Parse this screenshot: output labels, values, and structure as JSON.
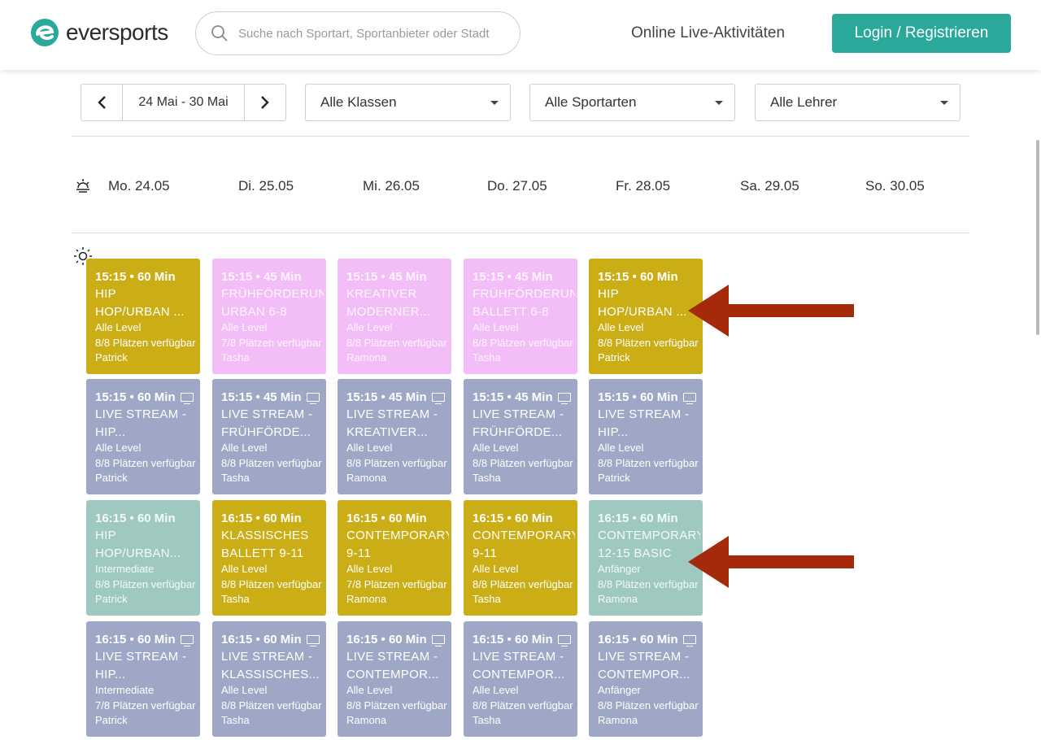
{
  "header": {
    "logo_text": "eversports",
    "search_placeholder": "Suche nach Sportart, Sportanbieter oder Stadt",
    "online_link": "Online Live-Aktivitäten",
    "login_button": "Login / Registrieren"
  },
  "filters": {
    "date_range": "24 Mai - 30 Mai",
    "classes": "Alle Klassen",
    "sports": "Alle Sportarten",
    "teachers": "Alle Lehrer"
  },
  "days": [
    "Mo. 24.05",
    "Di. 25.05",
    "Mi. 26.05",
    "Do. 27.05",
    "Fr. 28.05",
    "Sa. 29.05",
    "So. 30.05"
  ],
  "colors": {
    "brand": "#2aa99b",
    "yellow": "#cbad16",
    "pink": "#f3bdf7",
    "blue": "#9ea8c6",
    "teal": "#9ec8c0",
    "annotation_arrow": "#a52a0a"
  },
  "cards": [
    {
      "time": "15:15 • 60 Min",
      "title1": "HIP",
      "title2": "HOP/URBAN ...",
      "level": "Alle Level",
      "spots": "8/8 Plätzen verfügbar",
      "teacher": "Patrick",
      "color": "yellow",
      "live": false
    },
    {
      "time": "15:15 • 45 Min",
      "title1": "FRÜHFÖRDERUNG",
      "title2": "URBAN 6-8",
      "level": "Alle Level",
      "spots": "7/8 Plätzen verfügbar",
      "teacher": "Tasha",
      "color": "pink",
      "live": false
    },
    {
      "time": "15:15 • 45 Min",
      "title1": "KREATIVER",
      "title2": "MODERNER...",
      "level": "Alle Level",
      "spots": "8/8 Plätzen verfügbar",
      "teacher": "Ramona",
      "color": "pink",
      "live": false
    },
    {
      "time": "15:15 • 45 Min",
      "title1": "FRÜHFÖRDERUNG",
      "title2": "BALLETT 6-8",
      "level": "Alle Level",
      "spots": "8/8 Plätzen verfügbar",
      "teacher": "Tasha",
      "color": "pink",
      "live": false
    },
    {
      "time": "15:15 • 60 Min",
      "title1": "HIP",
      "title2": "HOP/URBAN ...",
      "level": "Alle Level",
      "spots": "8/8 Plätzen verfügbar",
      "teacher": "Patrick",
      "color": "yellow",
      "live": false
    },
    {
      "time": "15:15 • 60 Min",
      "title1": "LIVE STREAM -",
      "title2": "HIP...",
      "level": "Alle Level",
      "spots": "8/8 Plätzen verfügbar",
      "teacher": "Patrick",
      "color": "blue",
      "live": true
    },
    {
      "time": "15:15 • 45 Min",
      "title1": "LIVE STREAM -",
      "title2": "FRÜHFÖRDE...",
      "level": "Alle Level",
      "spots": "8/8 Plätzen verfügbar",
      "teacher": "Tasha",
      "color": "blue",
      "live": true
    },
    {
      "time": "15:15 • 45 Min",
      "title1": "LIVE STREAM -",
      "title2": "KREATIVER...",
      "level": "Alle Level",
      "spots": "8/8 Plätzen verfügbar",
      "teacher": "Ramona",
      "color": "blue",
      "live": true
    },
    {
      "time": "15:15 • 45 Min",
      "title1": "LIVE STREAM -",
      "title2": "FRÜHFÖRDE...",
      "level": "Alle Level",
      "spots": "8/8 Plätzen verfügbar",
      "teacher": "Tasha",
      "color": "blue",
      "live": true
    },
    {
      "time": "15:15 • 60 Min",
      "title1": "LIVE STREAM -",
      "title2": "HIP...",
      "level": "Alle Level",
      "spots": "8/8 Plätzen verfügbar",
      "teacher": "Patrick",
      "color": "blue",
      "live": true
    },
    {
      "time": "16:15 • 60 Min",
      "title1": "HIP",
      "title2": "HOP/URBAN...",
      "level": "Intermediate",
      "spots": "8/8 Plätzen verfügbar",
      "teacher": "Patrick",
      "color": "teal",
      "live": false
    },
    {
      "time": "16:15 • 60 Min",
      "title1": "KLASSISCHES",
      "title2": "BALLETT 9-11",
      "level": "Alle Level",
      "spots": "8/8 Plätzen verfügbar",
      "teacher": "Tasha",
      "color": "yellow",
      "live": false
    },
    {
      "time": "16:15 • 60 Min",
      "title1": "CONTEMPORARY",
      "title2": "9-11",
      "level": "Alle Level",
      "spots": "7/8 Plätzen verfügbar",
      "teacher": "Ramona",
      "color": "yellow",
      "live": false
    },
    {
      "time": "16:15 • 60 Min",
      "title1": "CONTEMPORARY",
      "title2": "9-11",
      "level": "Alle Level",
      "spots": "8/8 Plätzen verfügbar",
      "teacher": "Tasha",
      "color": "yellow",
      "live": false
    },
    {
      "time": "16:15 • 60 Min",
      "title1": "CONTEMPORARY",
      "title2": "12-15 BASIC",
      "level": "Anfänger",
      "spots": "8/8 Plätzen verfügbar",
      "teacher": "Ramona",
      "color": "teal",
      "live": false
    },
    {
      "time": "16:15 • 60 Min",
      "title1": "LIVE STREAM -",
      "title2": "HIP...",
      "level": "Intermediate",
      "spots": "7/8 Plätzen verfügbar",
      "teacher": "Patrick",
      "color": "blue",
      "live": true
    },
    {
      "time": "16:15 • 60 Min",
      "title1": "LIVE STREAM -",
      "title2": "KLASSISCHES...",
      "level": "Alle Level",
      "spots": "8/8 Plätzen verfügbar",
      "teacher": "Tasha",
      "color": "blue",
      "live": true
    },
    {
      "time": "16:15 • 60 Min",
      "title1": "LIVE STREAM -",
      "title2": "CONTEMPOR...",
      "level": "Alle Level",
      "spots": "8/8 Plätzen verfügbar",
      "teacher": "Ramona",
      "color": "blue",
      "live": true
    },
    {
      "time": "16:15 • 60 Min",
      "title1": "LIVE STREAM -",
      "title2": "CONTEMPOR...",
      "level": "Alle Level",
      "spots": "8/8 Plätzen verfügbar",
      "teacher": "Tasha",
      "color": "blue",
      "live": true
    },
    {
      "time": "16:15 • 60 Min",
      "title1": "LIVE STREAM -",
      "title2": "CONTEMPOR...",
      "level": "Anfänger",
      "spots": "8/8 Plätzen verfügbar",
      "teacher": "Ramona",
      "color": "blue",
      "live": true
    }
  ]
}
